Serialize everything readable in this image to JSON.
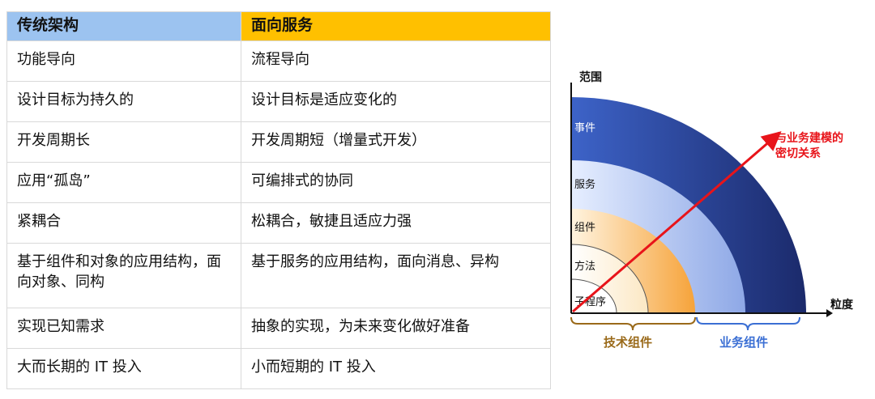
{
  "table": {
    "headers": [
      "传统架构",
      "面向服务"
    ],
    "rows": [
      [
        "功能导向",
        "流程导向"
      ],
      [
        "设计目标为持久的",
        "设计目标是适应变化的"
      ],
      [
        "开发周期长",
        "开发周期短（增量式开发）"
      ],
      [
        "应用“孤岛”",
        "可编排式的协同"
      ],
      [
        "紧耦合",
        "松耦合，敏捷且适应力强"
      ],
      [
        "基于组件和对象的应用结构，面向对象、同构",
        "基于服务的应用结构，面向消息、异构"
      ],
      [
        "实现已知需求",
        "抽象的实现，为未来变化做好准备"
      ],
      [
        "大而长期的 IT 投入",
        "小而短期的 IT 投入"
      ]
    ]
  },
  "diagram": {
    "y_axis_label": "范围",
    "x_axis_label": "粒度",
    "rings": [
      "事件",
      "服务",
      "组件",
      "方法",
      "子程序"
    ],
    "arrow_label_line1": "与业务建模的",
    "arrow_label_line2": "密切关系",
    "brace_left_label": "技术组件",
    "brace_right_label": "业务组件",
    "colors": {
      "arrow": "#e8141a",
      "brace_left": "#9a6a1a",
      "brace_right": "#3b6fd4",
      "header_left": "#9cc3f0",
      "header_right": "#ffc000"
    }
  }
}
